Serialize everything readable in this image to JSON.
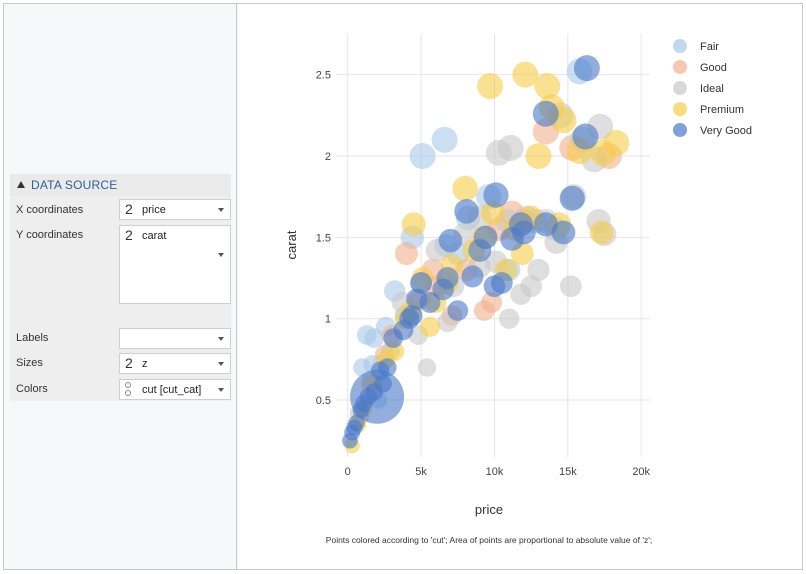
{
  "data_source": {
    "title": "DATA SOURCE",
    "x_label": "X coordinates",
    "x_num": "2",
    "x_value": "price",
    "y_label": "Y coordinates",
    "y_num": "2",
    "y_value": "carat",
    "labels_label": "Labels",
    "labels_value": "",
    "sizes_label": "Sizes",
    "sizes_num": "2",
    "sizes_value": "z",
    "colors_label": "Colors",
    "colors_value": "cut [cut_cat]"
  },
  "caption": "Points colored according to 'cut'; Area of points are proportional to absolute value of 'z';",
  "colors": {
    "Fair": "#a8c8ea",
    "Good": "#f2b08f",
    "Ideal": "#c8c8c8",
    "Premium": "#f7cd4a",
    "Very Good": "#4a78c8"
  },
  "chart_data": {
    "type": "scatter",
    "xlabel": "price",
    "ylabel": "carat",
    "xlim": [
      -800,
      20600
    ],
    "ylim": [
      0.15,
      2.75
    ],
    "xticks": [
      0,
      5000,
      10000,
      15000,
      20000
    ],
    "xtick_labels": [
      "0",
      "5k",
      "10k",
      "15k",
      "20k"
    ],
    "yticks": [
      0.5,
      1,
      1.5,
      2,
      2.5
    ],
    "ytick_labels": [
      "0.5",
      "1",
      "1.5",
      "2",
      "2.5"
    ],
    "grid": true,
    "legend_position": "top-right",
    "series": [
      {
        "name": "Fair",
        "points": [
          [
            5100,
            2.0
          ],
          [
            6600,
            2.1
          ],
          [
            15800,
            2.52
          ],
          [
            4400,
            1.5
          ],
          [
            6700,
            1.45
          ],
          [
            8200,
            1.62
          ],
          [
            9600,
            1.75
          ],
          [
            12800,
            1.6
          ],
          [
            3200,
            1.17
          ],
          [
            1300,
            0.9
          ],
          [
            1700,
            0.72
          ],
          [
            2600,
            0.95
          ],
          [
            1000,
            0.7
          ],
          [
            2100,
            0.5
          ],
          [
            14200,
            1.55
          ],
          [
            7500,
            1.4
          ],
          [
            3900,
            1.02
          ],
          [
            5000,
            1.22
          ],
          [
            1800,
            0.88
          ],
          [
            11000,
            1.3
          ]
        ]
      },
      {
        "name": "Good",
        "points": [
          [
            4000,
            1.4
          ],
          [
            6100,
            1.2
          ],
          [
            8100,
            1.3
          ],
          [
            9800,
            1.1
          ],
          [
            12000,
            1.6
          ],
          [
            17800,
            2.0
          ],
          [
            13500,
            2.15
          ],
          [
            3000,
            0.9
          ],
          [
            2500,
            0.78
          ],
          [
            1500,
            0.6
          ],
          [
            900,
            0.4
          ],
          [
            4900,
            1.12
          ],
          [
            7100,
            1.02
          ],
          [
            10300,
            1.55
          ],
          [
            15300,
            2.05
          ],
          [
            11200,
            1.65
          ],
          [
            9300,
            1.05
          ],
          [
            5800,
            1.3
          ]
        ]
      },
      {
        "name": "Ideal",
        "points": [
          [
            16000,
            2.1
          ],
          [
            17200,
            2.18
          ],
          [
            14500,
            2.25
          ],
          [
            11100,
            2.05
          ],
          [
            10300,
            2.02
          ],
          [
            16800,
            1.98
          ],
          [
            17500,
            1.52
          ],
          [
            12500,
            1.2
          ],
          [
            15200,
            1.2
          ],
          [
            13000,
            1.3
          ],
          [
            12200,
            1.62
          ],
          [
            10900,
            1.6
          ],
          [
            9000,
            1.62
          ],
          [
            8000,
            1.52
          ],
          [
            6100,
            1.42
          ],
          [
            5400,
            0.7
          ],
          [
            4800,
            0.9
          ],
          [
            3700,
            1.1
          ],
          [
            2900,
            0.8
          ],
          [
            2300,
            0.72
          ],
          [
            1600,
            0.62
          ],
          [
            700,
            0.42
          ],
          [
            7200,
            1.2
          ],
          [
            11000,
            1.0
          ],
          [
            9000,
            1.32
          ],
          [
            13500,
            1.6
          ],
          [
            17100,
            1.6
          ],
          [
            11800,
            1.15
          ],
          [
            6800,
            0.98
          ],
          [
            15400,
            1.75
          ],
          [
            10100,
            1.35
          ],
          [
            14200,
            1.47
          ]
        ]
      },
      {
        "name": "Premium",
        "points": [
          [
            9700,
            2.43
          ],
          [
            12100,
            2.5
          ],
          [
            13600,
            2.43
          ],
          [
            14700,
            2.22
          ],
          [
            13000,
            2.0
          ],
          [
            18300,
            2.08
          ],
          [
            17400,
            2.02
          ],
          [
            12500,
            1.62
          ],
          [
            11400,
            1.55
          ],
          [
            9300,
            1.5
          ],
          [
            8000,
            1.8
          ],
          [
            4500,
            1.58
          ],
          [
            5100,
            1.25
          ],
          [
            6000,
            1.1
          ],
          [
            3900,
            1.0
          ],
          [
            3200,
            0.8
          ],
          [
            2600,
            0.75
          ],
          [
            1800,
            0.6
          ],
          [
            1100,
            0.45
          ],
          [
            700,
            0.35
          ],
          [
            300,
            0.22
          ],
          [
            6800,
            1.22
          ],
          [
            9900,
            1.65
          ],
          [
            11900,
            1.4
          ],
          [
            13900,
            2.3
          ],
          [
            15800,
            2.03
          ],
          [
            17300,
            1.53
          ],
          [
            8600,
            1.42
          ],
          [
            7100,
            1.33
          ],
          [
            4300,
            1.05
          ],
          [
            10800,
            1.3
          ],
          [
            14400,
            1.58
          ],
          [
            5600,
            0.95
          ]
        ]
      },
      {
        "name": "Very Good",
        "points": [
          [
            2000,
            0.52
          ],
          [
            16300,
            2.54
          ],
          [
            13500,
            2.26
          ],
          [
            16200,
            2.12
          ],
          [
            15300,
            1.74
          ],
          [
            13500,
            1.58
          ],
          [
            10100,
            1.76
          ],
          [
            8100,
            1.66
          ],
          [
            12000,
            1.53
          ],
          [
            14700,
            1.53
          ],
          [
            9400,
            1.5
          ],
          [
            11200,
            1.49
          ],
          [
            7000,
            1.48
          ],
          [
            6500,
            1.18
          ],
          [
            5000,
            1.22
          ],
          [
            4200,
            1.0
          ],
          [
            3800,
            0.93
          ],
          [
            2700,
            0.7
          ],
          [
            2200,
            0.68
          ],
          [
            1800,
            0.55
          ],
          [
            1400,
            0.52
          ],
          [
            900,
            0.44
          ],
          [
            600,
            0.36
          ],
          [
            300,
            0.3
          ],
          [
            150,
            0.25
          ],
          [
            10000,
            1.2
          ],
          [
            8500,
            1.26
          ],
          [
            11800,
            1.58
          ],
          [
            7500,
            1.05
          ],
          [
            5600,
            1.1
          ],
          [
            3100,
            0.88
          ],
          [
            4400,
            1.02
          ],
          [
            9000,
            1.42
          ],
          [
            10500,
            1.22
          ],
          [
            6800,
            1.25
          ],
          [
            4700,
            1.12
          ],
          [
            2400,
            0.6
          ],
          [
            1100,
            0.48
          ],
          [
            450,
            0.33
          ]
        ]
      }
    ]
  }
}
